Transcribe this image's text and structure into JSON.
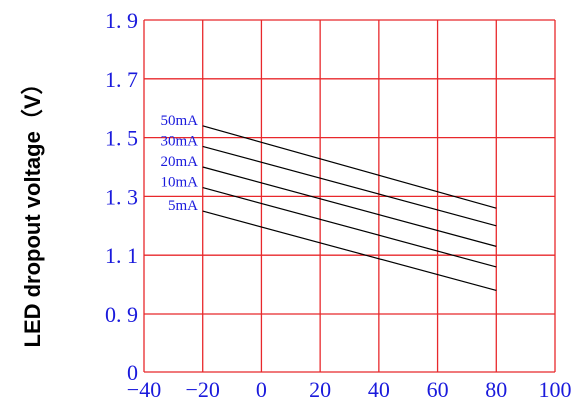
{
  "chart_data": {
    "type": "line",
    "title": "",
    "xlabel": "",
    "ylabel": "LED dropout voltage（V）",
    "xlim": [
      -40,
      100
    ],
    "y_ticks": [
      {
        "value": 0,
        "label": "0"
      },
      {
        "value": 0.9,
        "label": "0. 9"
      },
      {
        "value": 1.1,
        "label": "1. 1"
      },
      {
        "value": 1.3,
        "label": "1. 3"
      },
      {
        "value": 1.5,
        "label": "1. 5"
      },
      {
        "value": 1.7,
        "label": "1. 7"
      },
      {
        "value": 1.9,
        "label": "1. 9"
      }
    ],
    "x_ticks": [
      {
        "value": -40,
        "label": "−40"
      },
      {
        "value": -20,
        "label": "−20"
      },
      {
        "value": 0,
        "label": "0"
      },
      {
        "value": 20,
        "label": "20"
      },
      {
        "value": 40,
        "label": "40"
      },
      {
        "value": 60,
        "label": "60"
      },
      {
        "value": 80,
        "label": "80"
      },
      {
        "value": 100,
        "label": "100"
      }
    ],
    "grid": true,
    "series": [
      {
        "name": "50mA",
        "x": [
          -20,
          80
        ],
        "y": [
          1.54,
          1.26
        ]
      },
      {
        "name": "30mA",
        "x": [
          -20,
          80
        ],
        "y": [
          1.47,
          1.2
        ]
      },
      {
        "name": "20mA",
        "x": [
          -20,
          80
        ],
        "y": [
          1.4,
          1.13
        ]
      },
      {
        "name": "10mA",
        "x": [
          -20,
          80
        ],
        "y": [
          1.33,
          1.06
        ]
      },
      {
        "name": "5mA",
        "x": [
          -20,
          80
        ],
        "y": [
          1.25,
          0.98
        ]
      }
    ],
    "colors": {
      "grid": "#e8282b",
      "line": "#000000",
      "text": "#1a1adc"
    }
  }
}
